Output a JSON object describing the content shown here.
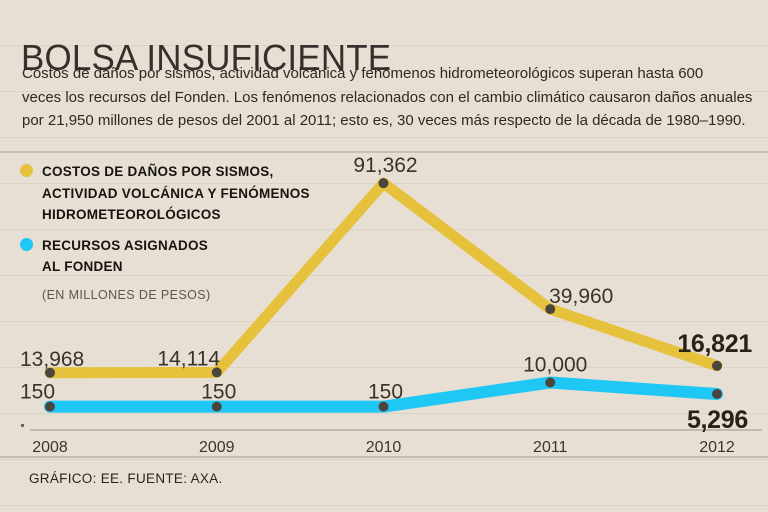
{
  "page": {
    "title": "BOLSA INSUFICIENTE",
    "subtitle_lines": [
      "Costos de daños por sismos, actividad volcánica y fenómenos hidrometeorológicos superan hasta 600",
      "veces los recursos del Fonden. Los fenómenos relacionados con el cambio climático causaron daños anuales",
      "por 21,950 millones de pesos del 2001 al 2011; esto es, 30 veces más respecto de la década de 1980–1990."
    ],
    "footer": "GRÁFICO: EE. FUENTE: AXA."
  },
  "legend": {
    "series1_lines": [
      "COSTOS DE DAÑOS POR SISMOS,",
      "ACTIVIDAD VOLCÁNICA Y FENÓMENOS",
      "HIDROMETEOROLÓGICOS"
    ],
    "series2_lines": [
      "RECURSOS ASIGNADOS",
      "AL FONDEN"
    ],
    "unit_note": "(EN MILLONES DE PESOS)"
  },
  "colors": {
    "background": "#e7dfd4",
    "damage_costs": "#e6c23c",
    "fonden": "#1fc7f5",
    "dot": "#4a463f",
    "axis": "#b7aea2",
    "tick": "#6b645c"
  },
  "chart_data": {
    "type": "line",
    "categories": [
      "2008",
      "2009",
      "2010",
      "2011",
      "2012"
    ],
    "series": [
      {
        "name": "Costos de daños por sismos, actividad volcánica y fenómenos hidrometeorológicos",
        "color": "#e6c23c",
        "values": [
          13968,
          14114,
          91362,
          39960,
          16821
        ],
        "labels": [
          "13,968",
          "14,114",
          "91,362",
          "39,960",
          "16,821"
        ]
      },
      {
        "name": "Recursos asignados al Fonden",
        "color": "#1fc7f5",
        "values": [
          150,
          150,
          150,
          10000,
          5296
        ],
        "labels": [
          "150",
          "150",
          "150",
          "10,000",
          "5,296"
        ]
      }
    ],
    "unit": "millones de pesos",
    "ylim": [
      0,
      95000
    ],
    "grid": false,
    "legend_position": "top-left"
  }
}
